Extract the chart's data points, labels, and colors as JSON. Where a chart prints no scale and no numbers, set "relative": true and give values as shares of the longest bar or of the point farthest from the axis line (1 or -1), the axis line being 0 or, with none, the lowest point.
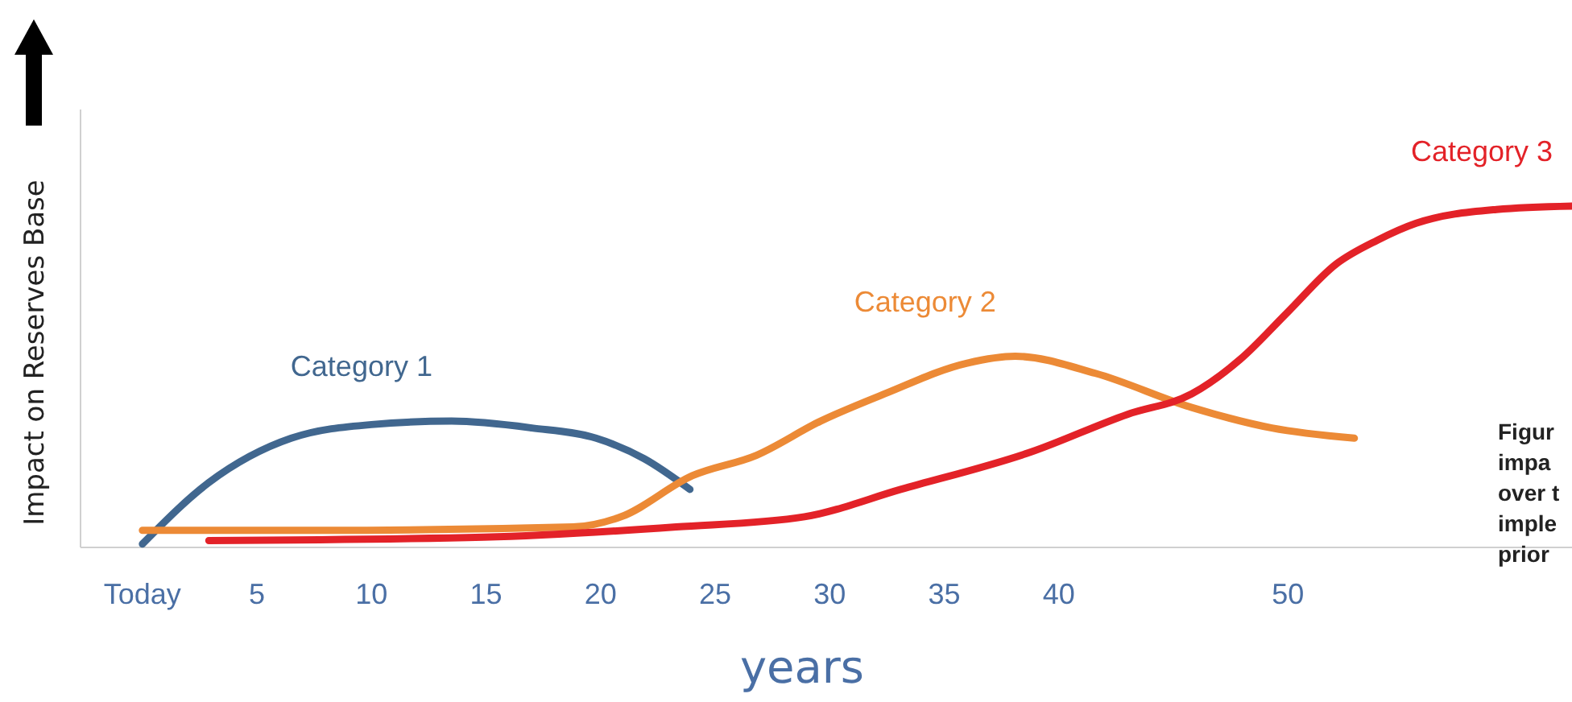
{
  "chart_data": {
    "type": "line",
    "relative": true,
    "ylabel": "Impact on Reserves Base",
    "xlabel": "years",
    "xlim": [
      -2.7,
      62.4
    ],
    "xticks": [
      {
        "value": 0,
        "label": "Today"
      },
      5,
      10,
      15,
      20,
      25,
      30,
      35,
      40,
      50
    ],
    "legend": false,
    "grid": false,
    "marker": "none",
    "line_style": "solid",
    "series": [
      {
        "name": "Category 1",
        "color": "#41678f",
        "x": [
          0,
          2.9,
          6.5,
          10.0,
          13.5,
          17.0,
          19.8,
          21.9,
          23.9
        ],
        "values": [
          0.01,
          0.19,
          0.32,
          0.36,
          0.37,
          0.35,
          0.32,
          0.26,
          0.17
        ]
      },
      {
        "name": "Category 2",
        "color": "#ec8a36",
        "x": [
          0,
          7.9,
          18.8,
          20.9,
          24.0,
          26.8,
          29.6,
          32.4,
          36.0,
          38.1,
          41.6,
          45.8,
          49.3,
          52.9
        ],
        "values": [
          0.05,
          0.05,
          0.06,
          0.09,
          0.21,
          0.27,
          0.37,
          0.45,
          0.54,
          0.56,
          0.51,
          0.41,
          0.35,
          0.32
        ]
      },
      {
        "name": "Category 3",
        "color": "#e32228",
        "x": [
          2.9,
          14.9,
          23.3,
          28.9,
          33.1,
          38.8,
          43.0,
          45.8,
          47.9,
          50.0,
          52.1,
          53.9,
          55.6,
          59.1,
          62.4
        ],
        "values": [
          0.02,
          0.03,
          0.06,
          0.09,
          0.17,
          0.28,
          0.39,
          0.45,
          0.55,
          0.69,
          0.83,
          0.9,
          0.95,
          0.99,
          1.0
        ]
      }
    ],
    "annotations": [
      "Figur",
      "impa",
      "over t",
      "imple",
      "prior"
    ]
  }
}
